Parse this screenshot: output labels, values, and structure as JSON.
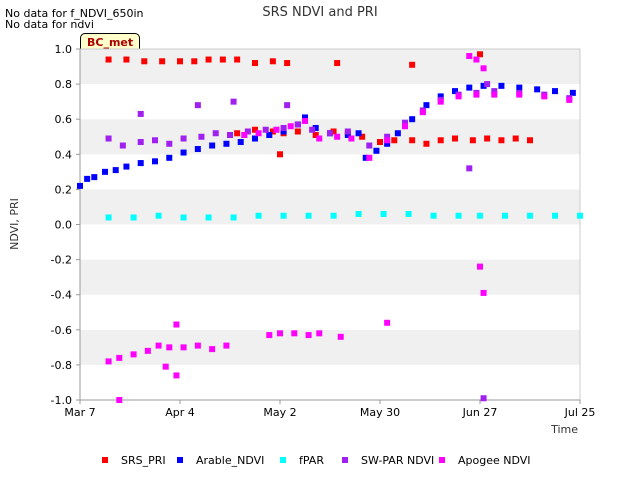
{
  "notes": [
    "No data for f_NDVI_650in",
    "No data for ndvi"
  ],
  "site_badge": "BC_met",
  "chart_data": {
    "type": "scatter",
    "title": "SRS NDVI and PRI",
    "xlabel": "Time",
    "ylabel": "NDVI, PRI",
    "ylim": [
      -1.0,
      1.0
    ],
    "yticks": [
      -1.0,
      -0.8,
      -0.6,
      -0.4,
      -0.2,
      0.0,
      0.2,
      0.4,
      0.6,
      0.8,
      1.0
    ],
    "xlim": [
      "2024-03-07",
      "2024-07-25"
    ],
    "xticks": [
      "2024-03-07",
      "2024-04-04",
      "2024-05-02",
      "2024-05-30",
      "2024-06-27",
      "2024-07-25"
    ],
    "xtick_labels": [
      "Mar 7",
      "Apr 4",
      "May 2",
      "May 30",
      "Jun 27",
      "Jul 25"
    ],
    "grid": "horizontal bands",
    "legend_position": "bottom",
    "series": [
      {
        "name": "SRS_PRI",
        "color": "#ff0000",
        "points": [
          [
            "2024-03-15",
            0.94
          ],
          [
            "2024-03-20",
            0.94
          ],
          [
            "2024-03-25",
            0.93
          ],
          [
            "2024-03-30",
            0.93
          ],
          [
            "2024-04-04",
            0.93
          ],
          [
            "2024-04-08",
            0.93
          ],
          [
            "2024-04-12",
            0.94
          ],
          [
            "2024-04-16",
            0.94
          ],
          [
            "2024-04-20",
            0.94
          ],
          [
            "2024-04-25",
            0.92
          ],
          [
            "2024-04-30",
            0.93
          ],
          [
            "2024-05-04",
            0.92
          ],
          [
            "2024-05-18",
            0.92
          ],
          [
            "2024-06-08",
            0.91
          ],
          [
            "2024-06-27",
            0.97
          ],
          [
            "2024-04-20",
            0.52
          ],
          [
            "2024-04-25",
            0.54
          ],
          [
            "2024-04-30",
            0.53
          ],
          [
            "2024-05-03",
            0.52
          ],
          [
            "2024-05-07",
            0.53
          ],
          [
            "2024-05-12",
            0.51
          ],
          [
            "2024-05-17",
            0.53
          ],
          [
            "2024-05-21",
            0.52
          ],
          [
            "2024-05-25",
            0.5
          ],
          [
            "2024-05-30",
            0.47
          ],
          [
            "2024-06-03",
            0.48
          ],
          [
            "2024-06-08",
            0.48
          ],
          [
            "2024-06-12",
            0.46
          ],
          [
            "2024-06-16",
            0.48
          ],
          [
            "2024-06-20",
            0.49
          ],
          [
            "2024-06-25",
            0.48
          ],
          [
            "2024-06-29",
            0.49
          ],
          [
            "2024-07-03",
            0.48
          ],
          [
            "2024-07-07",
            0.49
          ],
          [
            "2024-07-11",
            0.48
          ],
          [
            "2024-05-02",
            0.4
          ]
        ]
      },
      {
        "name": "Arable_NDVI",
        "color": "#0000ff",
        "points": [
          [
            "2024-03-07",
            0.22
          ],
          [
            "2024-03-09",
            0.26
          ],
          [
            "2024-03-11",
            0.27
          ],
          [
            "2024-03-14",
            0.3
          ],
          [
            "2024-03-17",
            0.31
          ],
          [
            "2024-03-20",
            0.33
          ],
          [
            "2024-03-24",
            0.35
          ],
          [
            "2024-03-28",
            0.36
          ],
          [
            "2024-04-01",
            0.38
          ],
          [
            "2024-04-05",
            0.41
          ],
          [
            "2024-04-09",
            0.43
          ],
          [
            "2024-04-13",
            0.45
          ],
          [
            "2024-04-17",
            0.46
          ],
          [
            "2024-04-21",
            0.47
          ],
          [
            "2024-04-25",
            0.49
          ],
          [
            "2024-04-29",
            0.51
          ],
          [
            "2024-05-03",
            0.53
          ],
          [
            "2024-05-07",
            0.57
          ],
          [
            "2024-05-09",
            0.61
          ],
          [
            "2024-05-12",
            0.55
          ],
          [
            "2024-05-16",
            0.52
          ],
          [
            "2024-05-21",
            0.51
          ],
          [
            "2024-05-24",
            0.52
          ],
          [
            "2024-05-26",
            0.38
          ],
          [
            "2024-05-29",
            0.42
          ],
          [
            "2024-06-01",
            0.46
          ],
          [
            "2024-06-04",
            0.52
          ],
          [
            "2024-06-08",
            0.6
          ],
          [
            "2024-06-12",
            0.68
          ],
          [
            "2024-06-16",
            0.73
          ],
          [
            "2024-06-20",
            0.76
          ],
          [
            "2024-06-24",
            0.78
          ],
          [
            "2024-06-28",
            0.79
          ],
          [
            "2024-07-03",
            0.79
          ],
          [
            "2024-07-08",
            0.78
          ],
          [
            "2024-07-13",
            0.77
          ],
          [
            "2024-07-18",
            0.76
          ],
          [
            "2024-07-23",
            0.75
          ]
        ]
      },
      {
        "name": "fPAR",
        "color": "#00ffff",
        "points": [
          [
            "2024-03-15",
            0.04
          ],
          [
            "2024-03-22",
            0.04
          ],
          [
            "2024-03-29",
            0.05
          ],
          [
            "2024-04-05",
            0.04
          ],
          [
            "2024-04-12",
            0.04
          ],
          [
            "2024-04-19",
            0.04
          ],
          [
            "2024-04-26",
            0.05
          ],
          [
            "2024-05-03",
            0.05
          ],
          [
            "2024-05-10",
            0.05
          ],
          [
            "2024-05-17",
            0.05
          ],
          [
            "2024-05-24",
            0.06
          ],
          [
            "2024-05-31",
            0.06
          ],
          [
            "2024-06-07",
            0.06
          ],
          [
            "2024-06-14",
            0.05
          ],
          [
            "2024-06-21",
            0.05
          ],
          [
            "2024-06-27",
            0.05
          ],
          [
            "2024-07-04",
            0.05
          ],
          [
            "2024-07-11",
            0.05
          ],
          [
            "2024-07-18",
            0.05
          ],
          [
            "2024-07-25",
            0.05
          ]
        ]
      },
      {
        "name": "SW-PAR NDVI",
        "color": "#a020f0",
        "points": [
          [
            "2024-03-15",
            0.49
          ],
          [
            "2024-03-19",
            0.45
          ],
          [
            "2024-03-24",
            0.47
          ],
          [
            "2024-03-28",
            0.48
          ],
          [
            "2024-04-01",
            0.46
          ],
          [
            "2024-04-05",
            0.49
          ],
          [
            "2024-04-10",
            0.5
          ],
          [
            "2024-04-14",
            0.52
          ],
          [
            "2024-04-18",
            0.51
          ],
          [
            "2024-04-23",
            0.53
          ],
          [
            "2024-04-28",
            0.54
          ],
          [
            "2024-05-03",
            0.55
          ],
          [
            "2024-05-07",
            0.57
          ],
          [
            "2024-05-11",
            0.54
          ],
          [
            "2024-05-16",
            0.52
          ],
          [
            "2024-05-21",
            0.53
          ],
          [
            "2024-05-27",
            0.45
          ],
          [
            "2024-06-01",
            0.5
          ],
          [
            "2024-06-06",
            0.58
          ],
          [
            "2024-06-11",
            0.65
          ],
          [
            "2024-06-16",
            0.71
          ],
          [
            "2024-06-21",
            0.74
          ],
          [
            "2024-06-26",
            0.75
          ],
          [
            "2024-07-01",
            0.76
          ],
          [
            "2024-07-08",
            0.75
          ],
          [
            "2024-07-15",
            0.74
          ],
          [
            "2024-07-22",
            0.72
          ],
          [
            "2024-03-24",
            0.63
          ],
          [
            "2024-04-09",
            0.68
          ],
          [
            "2024-04-19",
            0.7
          ],
          [
            "2024-05-04",
            0.68
          ],
          [
            "2024-06-24",
            0.32
          ],
          [
            "2024-06-28",
            -0.99
          ],
          [
            "2024-06-29",
            0.8
          ]
        ]
      },
      {
        "name": "Apogee NDVI",
        "color": "#ff00ff",
        "points": [
          [
            "2024-03-15",
            -0.78
          ],
          [
            "2024-03-18",
            -0.76
          ],
          [
            "2024-03-22",
            -0.74
          ],
          [
            "2024-03-26",
            -0.72
          ],
          [
            "2024-03-29",
            -0.69
          ],
          [
            "2024-04-01",
            -0.7
          ],
          [
            "2024-04-05",
            -0.7
          ],
          [
            "2024-04-09",
            -0.69
          ],
          [
            "2024-04-13",
            -0.71
          ],
          [
            "2024-04-17",
            -0.69
          ],
          [
            "2024-03-31",
            -0.81
          ],
          [
            "2024-04-03",
            -0.57
          ],
          [
            "2024-04-03",
            -0.86
          ],
          [
            "2024-03-18",
            -1.0
          ],
          [
            "2024-04-29",
            -0.63
          ],
          [
            "2024-05-02",
            -0.62
          ],
          [
            "2024-05-06",
            -0.62
          ],
          [
            "2024-05-10",
            -0.63
          ],
          [
            "2024-05-13",
            -0.62
          ],
          [
            "2024-05-19",
            -0.64
          ],
          [
            "2024-06-01",
            -0.56
          ],
          [
            "2024-06-27",
            -0.24
          ],
          [
            "2024-06-28",
            -0.39
          ],
          [
            "2024-04-22",
            0.51
          ],
          [
            "2024-04-26",
            0.52
          ],
          [
            "2024-05-01",
            0.54
          ],
          [
            "2024-05-05",
            0.56
          ],
          [
            "2024-05-09",
            0.59
          ],
          [
            "2024-05-13",
            0.49
          ],
          [
            "2024-05-18",
            0.5
          ],
          [
            "2024-05-22",
            0.49
          ],
          [
            "2024-05-27",
            0.38
          ],
          [
            "2024-06-01",
            0.48
          ],
          [
            "2024-06-06",
            0.56
          ],
          [
            "2024-06-11",
            0.64
          ],
          [
            "2024-06-16",
            0.7
          ],
          [
            "2024-06-21",
            0.73
          ],
          [
            "2024-06-26",
            0.74
          ],
          [
            "2024-07-01",
            0.74
          ],
          [
            "2024-07-08",
            0.74
          ],
          [
            "2024-07-15",
            0.73
          ],
          [
            "2024-07-22",
            0.71
          ],
          [
            "2024-06-24",
            0.96
          ],
          [
            "2024-06-26",
            0.94
          ],
          [
            "2024-06-28",
            0.89
          ]
        ]
      }
    ]
  }
}
